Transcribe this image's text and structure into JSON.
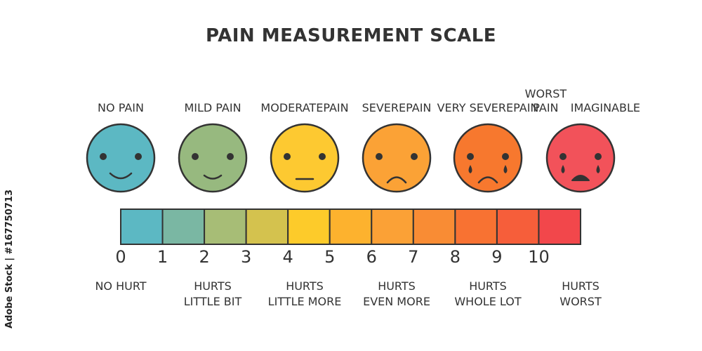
{
  "title": "PAIN MEASUREMENT SCALE",
  "faces": [
    {
      "label1": "NO PAIN",
      "label2": "",
      "color": "#5cb8c3",
      "mouth": "smile",
      "tears": false
    },
    {
      "label1": "MILD PAIN",
      "label2": "",
      "color": "#97b97f",
      "mouth": "smile-small",
      "tears": false
    },
    {
      "label1": "MODERATE",
      "label2": "PAIN",
      "color": "#fdc931",
      "mouth": "flat",
      "tears": false
    },
    {
      "label1": "SEVERE",
      "label2": "PAIN",
      "color": "#fba236",
      "mouth": "frown",
      "tears": false
    },
    {
      "label1": "VERY SEVERE",
      "label2": "PAIN",
      "color": "#f7782e",
      "mouth": "frown",
      "tears": true
    },
    {
      "label1": "WORST PAIN",
      "label2": "IMAGINABLE",
      "color": "#f2525a",
      "mouth": "open",
      "tears": true
    }
  ],
  "scale": {
    "ticks": [
      "0",
      "1",
      "2",
      "3",
      "4",
      "5",
      "6",
      "7",
      "8",
      "9",
      "10"
    ],
    "segment_colors": [
      "#5cb8c3",
      "#7ab7a3",
      "#a7bd76",
      "#d4c24e",
      "#fdcb2a",
      "#fdb22e",
      "#fba136",
      "#f98c34",
      "#f87232",
      "#f65e3a",
      "#f2474b"
    ]
  },
  "descriptions": [
    {
      "line1": "NO HURT",
      "line2": ""
    },
    {
      "line1": "HURTS",
      "line2": "LITTLE BIT"
    },
    {
      "line1": "HURTS",
      "line2": "LITTLE MORE"
    },
    {
      "line1": "HURTS",
      "line2": "EVEN MORE"
    },
    {
      "line1": "HURTS",
      "line2": "WHOLE LOT"
    },
    {
      "line1": "HURTS",
      "line2": "WORST"
    }
  ],
  "watermark": "Adobe Stock | #167750713"
}
